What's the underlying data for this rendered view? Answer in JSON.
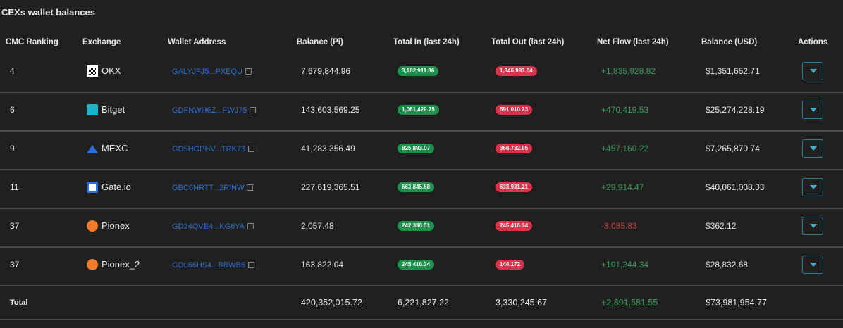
{
  "title": "CEXs wallet balances",
  "table": {
    "headers": [
      "CMC Ranking",
      "Exchange",
      "Wallet Address",
      "Balance (Pi)",
      "Total In (last 24h)",
      "Total Out (last 24h)",
      "Net Flow (last 24h)",
      "Balance (USD)",
      "Actions"
    ],
    "rows": [
      [
        "4",
        "OKX",
        "GALYJFJ5...PXEQU",
        "7,679,844.96",
        "3,182,911.86",
        "1,346,983.04",
        "+1,835,928.82",
        "$1,351,652.71"
      ],
      [
        "6",
        "Bitget",
        "GDFNWH6Z...FWJ75",
        "143,603,569.25",
        "1,061,429.75",
        "591,010.23",
        "+470,419.53",
        "$25,274,228.19"
      ],
      [
        "9",
        "MEXC",
        "GD5HGPHV...TRK73",
        "41,283,356.49",
        "825,893.07",
        "368,732.85",
        "+457,160.22",
        "$7,265,870.74"
      ],
      [
        "11",
        "Gate.io",
        "GBC6NRTT...2RINW",
        "227,619,365.51",
        "663,845.68",
        "633,931.21",
        "+29,914.47",
        "$40,061,008.33"
      ],
      [
        "37",
        "Pionex",
        "GD24QVE4...KG6YA",
        "2,057.48",
        "242,330.51",
        "245,416.34",
        "-3,085.83",
        "$362.12"
      ],
      [
        "37",
        "Pionex_2",
        "GDL66HS4...BBWB6",
        "163,822.04",
        "245,416.34",
        "144,172",
        "+101,244.34",
        "$28,832.68"
      ]
    ],
    "total": [
      "Total",
      "420,352,015.72",
      "6,221,827.22",
      "3,330,245.67",
      "+2,891,581.55",
      "$73,981,954.77"
    ]
  }
}
